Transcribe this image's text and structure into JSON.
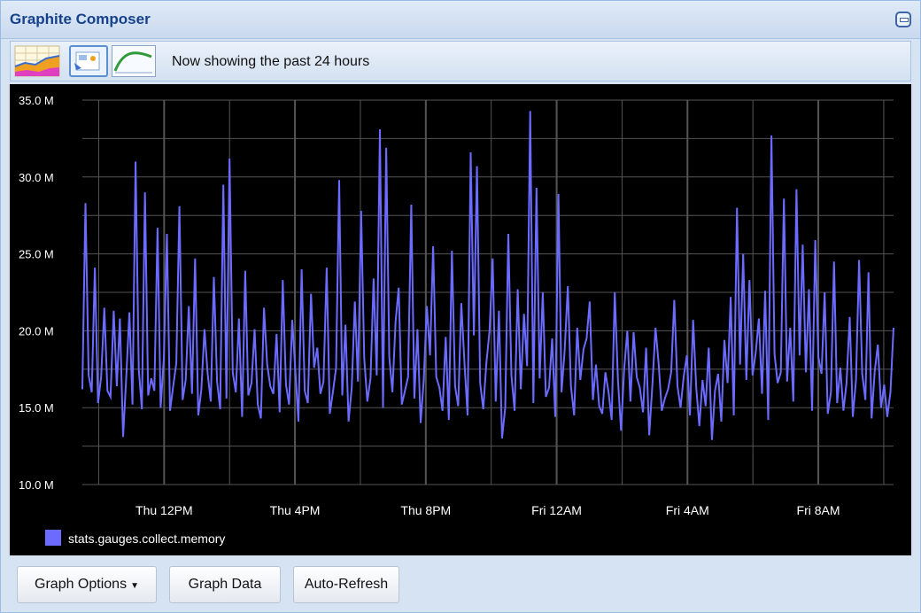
{
  "window": {
    "title": "Graphite Composer"
  },
  "toolbar": {
    "status_text": "Now showing the past 24 hours",
    "icons": [
      "graph-chart-icon",
      "dashboard-icon",
      "function-curve-icon"
    ]
  },
  "buttons": {
    "graph_options": "Graph Options",
    "graph_data": "Graph Data",
    "auto_refresh": "Auto-Refresh"
  },
  "colors": {
    "background": "#000000",
    "grid": "#555555",
    "series": "#6b6bff",
    "text": "#ffffff"
  },
  "chart_data": {
    "type": "line",
    "y_ticks": [
      "10.0 M",
      "15.0 M",
      "20.0 M",
      "25.0 M",
      "30.0 M",
      "35.0 M"
    ],
    "ylim": [
      10,
      35
    ],
    "x_ticks": [
      "Thu 12PM",
      "Thu  4PM",
      "Thu  8PM",
      "Fri 12AM",
      "Fri  4AM",
      "Fri  8AM"
    ],
    "x_tick_hours": [
      12,
      16,
      20,
      24,
      28,
      32
    ],
    "xlim": [
      9.5,
      34.3
    ],
    "grid": true,
    "legend_position": "bottom-left",
    "series": [
      {
        "name": "stats.gauges.collect.memory",
        "color": "#6b6bff",
        "values": [
          16.2,
          28.3,
          17.1,
          16.0,
          24.1,
          15.3,
          17.0,
          21.5,
          16.1,
          15.7,
          21.3,
          16.4,
          20.8,
          13.1,
          16.9,
          21.2,
          15.2,
          31.0,
          17.5,
          14.9,
          29.0,
          15.8,
          16.9,
          16.1,
          26.7,
          15.0,
          18.2,
          26.3,
          14.8,
          16.4,
          17.9,
          28.1,
          15.5,
          16.8,
          21.6,
          15.9,
          24.7,
          14.5,
          16.2,
          20.1,
          17.2,
          15.4,
          23.5,
          16.7,
          14.9,
          29.5,
          15.6,
          31.2,
          17.3,
          16.0,
          20.8,
          14.4,
          23.9,
          15.8,
          16.6,
          20.1,
          15.2,
          14.3,
          21.5,
          17.8,
          16.4,
          15.9,
          19.8,
          14.7,
          23.3,
          16.5,
          15.2,
          20.7,
          17.4,
          14.1,
          24.0,
          16.1,
          15.3,
          22.4,
          17.6,
          18.9,
          15.9,
          16.7,
          24.1,
          14.6,
          16.0,
          17.6,
          29.8,
          15.8,
          20.4,
          14.1,
          16.3,
          21.9,
          16.7,
          27.8,
          18.2,
          15.4,
          16.9,
          23.4,
          17.1,
          33.1,
          15.0,
          31.9,
          18.3,
          16.0,
          20.6,
          22.8,
          15.2,
          16.1,
          17.0,
          28.2,
          15.6,
          20.1,
          14.0,
          16.8,
          21.6,
          18.4,
          25.5,
          17.0,
          16.3,
          14.8,
          19.6,
          14.2,
          25.2,
          16.4,
          15.1,
          21.8,
          17.9,
          14.5,
          31.6,
          19.7,
          30.7,
          16.6,
          14.9,
          17.9,
          20.0,
          24.7,
          15.4,
          21.3,
          13.0,
          15.0,
          26.3,
          17.1,
          14.8,
          22.7,
          16.2,
          21.1,
          17.7,
          34.3,
          15.3,
          29.3,
          16.9,
          22.5,
          15.7,
          16.3,
          19.5,
          14.4,
          28.9,
          16.0,
          18.7,
          22.9,
          16.4,
          14.5,
          20.2,
          16.8,
          18.8,
          19.5,
          21.9,
          15.5,
          17.8,
          15.1,
          14.6,
          17.3,
          16.0,
          14.2,
          22.5,
          16.8,
          13.5,
          17.5,
          20.0,
          15.4,
          19.9,
          17.0,
          16.3,
          14.7,
          18.9,
          13.2,
          16.5,
          20.2,
          17.9,
          14.8,
          15.6,
          16.2,
          17.3,
          22.0,
          16.4,
          15.0,
          17.0,
          18.4,
          14.5,
          20.7,
          16.3,
          13.8,
          16.8,
          15.1,
          18.9,
          12.9,
          16.1,
          17.2,
          14.1,
          19.4,
          16.6,
          22.2,
          14.5,
          28.0,
          17.8,
          25.0,
          16.8,
          23.3,
          17.1,
          18.6,
          20.8,
          15.9,
          22.6,
          14.2,
          32.7,
          18.5,
          16.6,
          17.3,
          28.6,
          16.7,
          20.2,
          15.4,
          29.2,
          18.4,
          25.6,
          17.3,
          22.7,
          14.8,
          25.9,
          18.3,
          17.2,
          22.5,
          14.6,
          16.0,
          24.5,
          15.3,
          17.6,
          14.8,
          16.6,
          20.9,
          14.4,
          16.8,
          24.6,
          17.2,
          15.5,
          23.8,
          14.3,
          17.4,
          19.1,
          15.0,
          16.5,
          14.4,
          16.0,
          20.2
        ]
      }
    ]
  }
}
